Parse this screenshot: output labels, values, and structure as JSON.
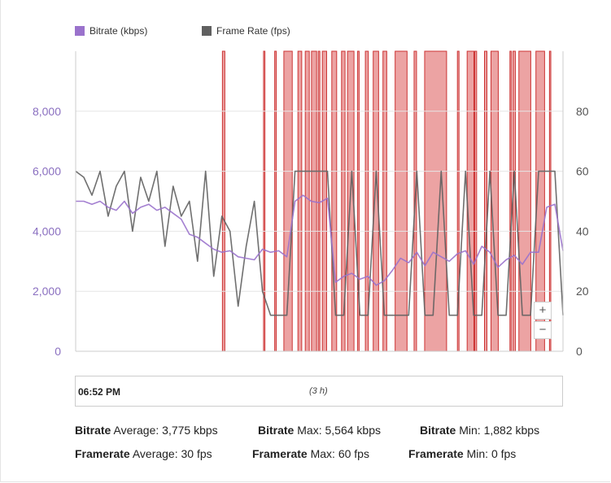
{
  "legend": [
    {
      "label": "Bitrate (kbps)",
      "color": "#9a72cc"
    },
    {
      "label": "Frame Rate (fps)",
      "color": "#606060"
    }
  ],
  "zoom": {
    "in_label": "+",
    "out_label": "−"
  },
  "navigator": {
    "start_time": "06:52 PM",
    "duration": "(3 h)"
  },
  "stats": [
    {
      "metric": "Bitrate",
      "kind": "Average:",
      "value": "3,775 kbps"
    },
    {
      "metric": "Bitrate",
      "kind": "Max:",
      "value": "5,564 kbps"
    },
    {
      "metric": "Bitrate",
      "kind": "Min:",
      "value": "1,882 kbps"
    },
    {
      "metric": "Framerate",
      "kind": "Average:",
      "value": "30 fps"
    },
    {
      "metric": "Framerate",
      "kind": "Max:",
      "value": "60 fps"
    },
    {
      "metric": "Framerate",
      "kind": "Min:",
      "value": "0 fps"
    }
  ],
  "chart_data": {
    "type": "line",
    "x_unit": "minutes since 06:52 PM",
    "x_range": [
      0,
      180
    ],
    "left_axis": {
      "label": "Bitrate (kbps)",
      "range": [
        0,
        10000
      ],
      "ticks": [
        0,
        2000,
        4000,
        6000,
        8000
      ],
      "tick_labels": [
        "0",
        "2,000",
        "4,000",
        "6,000",
        "8,000"
      ]
    },
    "right_axis": {
      "label": "Frame Rate (fps)",
      "range": [
        0,
        100
      ],
      "ticks": [
        0,
        20,
        40,
        60,
        80
      ],
      "tick_labels": [
        "0",
        "20",
        "40",
        "60",
        "80"
      ]
    },
    "grid": true,
    "legend_position": "top-left",
    "highlight_bands_minutes": [
      [
        54.2,
        55.1
      ],
      [
        69.4,
        69.9
      ],
      [
        73.5,
        74.1
      ],
      [
        76.9,
        80.0
      ],
      [
        82.1,
        83.5
      ],
      [
        84.8,
        86.3
      ],
      [
        87.1,
        89.0
      ],
      [
        89.6,
        90.2
      ],
      [
        91.1,
        92.7
      ],
      [
        94.6,
        96.4
      ],
      [
        98.2,
        99.5
      ],
      [
        100.4,
        102.8
      ],
      [
        104.1,
        104.7
      ],
      [
        107.0,
        108.1
      ],
      [
        109.9,
        111.9
      ],
      [
        113.5,
        114.9
      ],
      [
        118.0,
        122.4
      ],
      [
        125.0,
        125.9
      ],
      [
        128.9,
        137.0
      ],
      [
        141.0,
        141.6
      ],
      [
        144.6,
        147.1
      ],
      [
        147.4,
        148.1
      ],
      [
        151.0,
        151.9
      ],
      [
        153.4,
        156.1
      ],
      [
        160.4,
        160.9
      ],
      [
        161.5,
        162.4
      ],
      [
        163.7,
        168.1
      ],
      [
        170.0,
        173.2
      ],
      [
        175.0,
        175.5
      ]
    ],
    "series": [
      {
        "name": "Bitrate (kbps)",
        "axis": "left",
        "color": "#9a72cc",
        "x": [
          0,
          3,
          6,
          9,
          12,
          15,
          18,
          21,
          24,
          27,
          30,
          33,
          36,
          39,
          42,
          45,
          48,
          51,
          54,
          57,
          60,
          63,
          66,
          69,
          72,
          75,
          78,
          81,
          84,
          87,
          90,
          93,
          96,
          99,
          102,
          105,
          108,
          111,
          114,
          117,
          120,
          123,
          126,
          129,
          132,
          135,
          138,
          141,
          144,
          147,
          150,
          153,
          156,
          159,
          162,
          165,
          168,
          171,
          174,
          177,
          180
        ],
        "y": [
          5000,
          5000,
          4900,
          5000,
          4800,
          4700,
          5000,
          4600,
          4800,
          4900,
          4700,
          4800,
          4600,
          4400,
          3900,
          3800,
          3600,
          3400,
          3300,
          3350,
          3150,
          3100,
          3050,
          3400,
          3300,
          3350,
          3150,
          5000,
          5200,
          5000,
          4950,
          5100,
          2300,
          2500,
          2600,
          2400,
          2500,
          2200,
          2350,
          2700,
          3100,
          2950,
          3300,
          2850,
          3300,
          3150,
          3000,
          3250,
          3350,
          2900,
          3500,
          3300,
          2800,
          3050,
          3200,
          2900,
          3300,
          3300,
          4800,
          4900,
          3350
        ]
      },
      {
        "name": "Frame Rate (fps)",
        "axis": "right",
        "color": "#606060",
        "x": [
          0,
          3,
          6,
          9,
          12,
          15,
          18,
          21,
          24,
          27,
          30,
          33,
          36,
          39,
          42,
          45,
          48,
          51,
          54,
          57,
          60,
          63,
          66,
          69,
          72,
          75,
          78,
          81,
          84,
          87,
          90,
          93,
          96,
          99,
          102,
          105,
          108,
          111,
          114,
          117,
          120,
          123,
          126,
          129,
          132,
          135,
          138,
          141,
          144,
          147,
          150,
          153,
          156,
          159,
          162,
          165,
          168,
          171,
          174,
          177,
          180
        ],
        "y": [
          60,
          58,
          52,
          60,
          45,
          55,
          60,
          40,
          58,
          50,
          60,
          35,
          55,
          45,
          50,
          30,
          60,
          25,
          45,
          40,
          15,
          35,
          50,
          20,
          12,
          12,
          12,
          60,
          60,
          60,
          60,
          60,
          12,
          12,
          60,
          12,
          12,
          60,
          12,
          12,
          12,
          12,
          60,
          12,
          12,
          60,
          12,
          12,
          60,
          12,
          12,
          60,
          12,
          12,
          60,
          12,
          12,
          60,
          60,
          60,
          12
        ]
      }
    ]
  }
}
